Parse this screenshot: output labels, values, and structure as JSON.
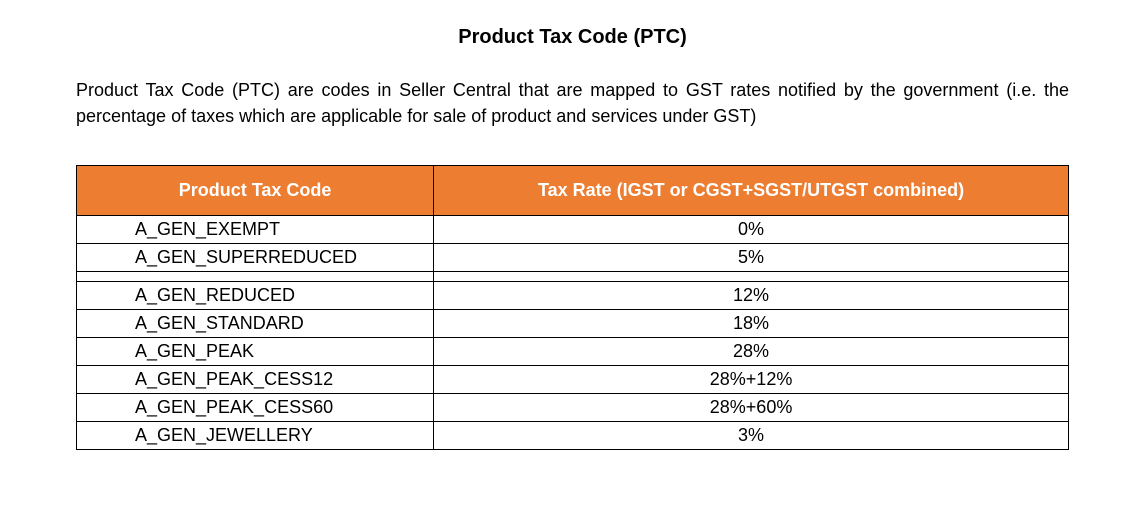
{
  "title": "Product Tax Code (PTC)",
  "intro": "Product Tax Code (PTC) are codes in Seller Central that are mapped to GST rates notified by the government (i.e. the percentage of taxes which are applicable for sale of product and services under GST)",
  "table": {
    "header_bg": "#ed7d31",
    "header_fg": "#ffffff",
    "border_color": "#000000",
    "columns": [
      "Product Tax Code",
      "Tax Rate (IGST or CGST+SGST/UTGST combined)"
    ],
    "rows": [
      {
        "code": "A_GEN_EXEMPT",
        "rate": "0%"
      },
      {
        "code": "A_GEN_SUPERREDUCED",
        "rate": "5%"
      },
      {
        "code": "A_GEN_REDUCED",
        "rate": "12%"
      },
      {
        "code": "A_GEN_STANDARD",
        "rate": "18%"
      },
      {
        "code": "A_GEN_PEAK",
        "rate": "28%"
      },
      {
        "code": "A_GEN_PEAK_CESS12",
        "rate": "28%+12%"
      },
      {
        "code": "A_GEN_PEAK_CESS60",
        "rate": "28%+60%"
      },
      {
        "code": "A_GEN_JEWELLERY",
        "rate": "3%"
      }
    ],
    "gap_after_row_index": 1
  }
}
